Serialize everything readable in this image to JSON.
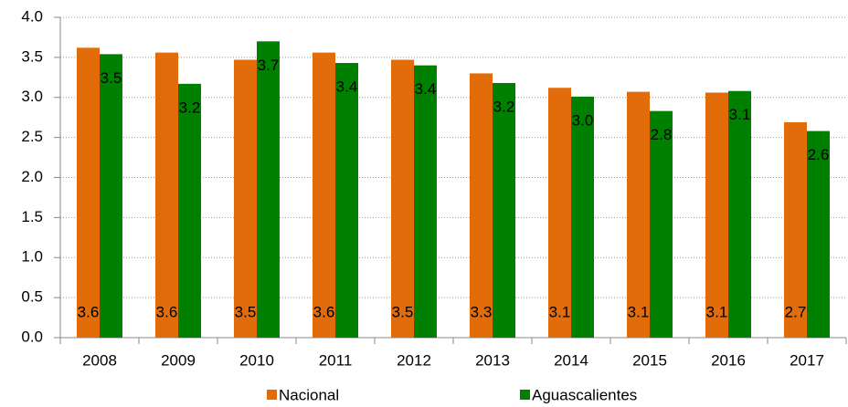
{
  "chart_data": {
    "type": "bar",
    "categories": [
      "2008",
      "2009",
      "2010",
      "2011",
      "2012",
      "2013",
      "2014",
      "2015",
      "2016",
      "2017"
    ],
    "series": [
      {
        "name": "Nacional",
        "color": "#e36c0a",
        "values": [
          3.62,
          3.56,
          3.47,
          3.56,
          3.47,
          3.3,
          3.12,
          3.07,
          3.06,
          2.69
        ],
        "value_labels": [
          "3.6",
          "3.6",
          "3.5",
          "3.6",
          "3.5",
          "3.3",
          "3.1",
          "3.1",
          "3.1",
          "2.7"
        ]
      },
      {
        "name": "Aguascalientes",
        "color": "#008000",
        "values": [
          3.54,
          3.17,
          3.7,
          3.43,
          3.4,
          3.18,
          3.01,
          2.83,
          3.08,
          2.58
        ],
        "value_labels": [
          "3.5",
          "3.2",
          "3.7",
          "3.4",
          "3.4",
          "3.2",
          "3.0",
          "2.8",
          "3.1",
          "2.6"
        ]
      }
    ],
    "ylim": [
      0,
      4
    ],
    "yticks": [
      {
        "value": 0,
        "label": "0.0"
      },
      0.5,
      {
        "value": 1,
        "label": "1.0"
      },
      1.5,
      {
        "value": 2,
        "label": "2.0"
      },
      2.5,
      {
        "value": 3,
        "label": "3.0"
      },
      3.5,
      {
        "value": 4,
        "label": "4.0"
      }
    ],
    "grid": true,
    "legend": "bottom"
  }
}
